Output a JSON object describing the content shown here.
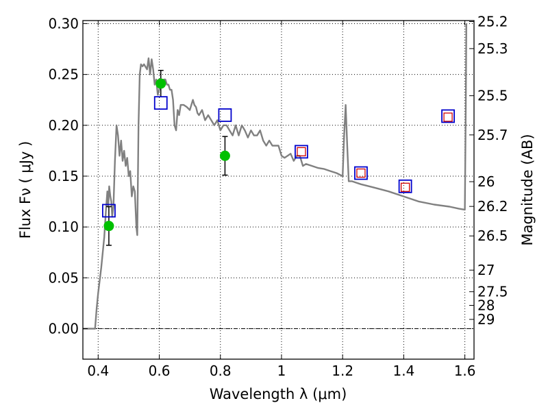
{
  "chart_data": {
    "type": "scatter",
    "xlabel": "Wavelength  λ (μm)",
    "ylabel": "Flux  Fν  ( μJy )",
    "y2label": "Magnitude (AB)",
    "xlim": [
      0.35,
      1.63
    ],
    "ylim": [
      -0.03,
      0.303
    ],
    "grid": true,
    "x_ticks": [
      {
        "value": 0.4,
        "label": "0.4"
      },
      {
        "value": 0.6,
        "label": "0.6"
      },
      {
        "value": 0.8,
        "label": "0.8"
      },
      {
        "value": 1.0,
        "label": "1"
      },
      {
        "value": 1.2,
        "label": "1.2"
      },
      {
        "value": 1.4,
        "label": "1.4"
      },
      {
        "value": 1.6,
        "label": "1.6"
      }
    ],
    "y_ticks": [
      {
        "value": 0.0,
        "label": "0.00"
      },
      {
        "value": 0.05,
        "label": "0.05"
      },
      {
        "value": 0.1,
        "label": "0.10"
      },
      {
        "value": 0.15,
        "label": "0.15"
      },
      {
        "value": 0.2,
        "label": "0.20"
      },
      {
        "value": 0.25,
        "label": "0.25"
      },
      {
        "value": 0.3,
        "label": "0.30"
      }
    ],
    "mag_ticks": [
      {
        "value": 25.2,
        "label": "25.2"
      },
      {
        "value": 25.3,
        "label": "25.3"
      },
      {
        "value": 25.5,
        "label": "25.5"
      },
      {
        "value": 25.7,
        "label": "25.7"
      },
      {
        "value": 26.0,
        "label": "26"
      },
      {
        "value": 26.2,
        "label": "26.2"
      },
      {
        "value": 26.5,
        "label": "26.5"
      },
      {
        "value": 27.0,
        "label": "27"
      },
      {
        "value": 27.5,
        "label": "27.5"
      },
      {
        "value": 28.0,
        "label": "28"
      },
      {
        "value": 29.0,
        "label": "29"
      }
    ],
    "series": [
      {
        "kind": "line",
        "color": "#808080",
        "x": [
          0.35,
          0.39,
          0.395,
          0.4,
          0.41,
          0.42,
          0.425,
          0.43,
          0.433,
          0.436,
          0.44,
          0.443,
          0.446,
          0.45,
          0.455,
          0.46,
          0.465,
          0.47,
          0.475,
          0.48,
          0.485,
          0.49,
          0.495,
          0.5,
          0.505,
          0.51,
          0.515,
          0.52,
          0.525,
          0.528,
          0.532,
          0.536,
          0.54,
          0.545,
          0.55,
          0.56,
          0.565,
          0.57,
          0.575,
          0.58,
          0.585,
          0.59,
          0.595,
          0.6,
          0.605,
          0.61,
          0.615,
          0.62,
          0.625,
          0.63,
          0.635,
          0.64,
          0.645,
          0.65,
          0.655,
          0.66,
          0.665,
          0.67,
          0.68,
          0.69,
          0.7,
          0.71,
          0.715,
          0.72,
          0.725,
          0.73,
          0.74,
          0.75,
          0.76,
          0.77,
          0.78,
          0.79,
          0.8,
          0.81,
          0.82,
          0.83,
          0.84,
          0.85,
          0.86,
          0.87,
          0.88,
          0.89,
          0.9,
          0.91,
          0.92,
          0.93,
          0.94,
          0.95,
          0.96,
          0.97,
          0.98,
          0.99,
          1.0,
          1.01,
          1.02,
          1.03,
          1.04,
          1.05,
          1.06,
          1.07,
          1.08,
          1.1,
          1.12,
          1.14,
          1.16,
          1.18,
          1.2,
          1.205,
          1.21,
          1.215,
          1.22,
          1.23,
          1.26,
          1.3,
          1.35,
          1.4,
          1.45,
          1.5,
          1.55,
          1.58,
          1.6,
          1.603,
          1.605
        ],
        "y": [
          0.0,
          0.0,
          0.02,
          0.035,
          0.06,
          0.09,
          0.115,
          0.135,
          0.12,
          0.14,
          0.13,
          0.125,
          0.11,
          0.12,
          0.165,
          0.2,
          0.19,
          0.17,
          0.185,
          0.165,
          0.175,
          0.16,
          0.168,
          0.15,
          0.155,
          0.13,
          0.14,
          0.135,
          0.1,
          0.092,
          0.2,
          0.25,
          0.26,
          0.258,
          0.26,
          0.255,
          0.266,
          0.25,
          0.265,
          0.255,
          0.24,
          0.245,
          0.23,
          0.235,
          0.245,
          0.24,
          0.245,
          0.245,
          0.24,
          0.24,
          0.235,
          0.235,
          0.225,
          0.2,
          0.195,
          0.215,
          0.21,
          0.22,
          0.22,
          0.218,
          0.215,
          0.225,
          0.22,
          0.218,
          0.212,
          0.21,
          0.215,
          0.205,
          0.21,
          0.205,
          0.2,
          0.205,
          0.195,
          0.2,
          0.2,
          0.195,
          0.19,
          0.2,
          0.19,
          0.2,
          0.195,
          0.188,
          0.195,
          0.19,
          0.19,
          0.195,
          0.185,
          0.18,
          0.185,
          0.18,
          0.18,
          0.18,
          0.17,
          0.168,
          0.17,
          0.172,
          0.165,
          0.17,
          0.17,
          0.16,
          0.162,
          0.16,
          0.158,
          0.157,
          0.155,
          0.153,
          0.15,
          0.19,
          0.22,
          0.18,
          0.145,
          0.145,
          0.142,
          0.139,
          0.135,
          0.13,
          0.125,
          0.122,
          0.12,
          0.118,
          0.117,
          0.22,
          0.3
        ]
      },
      {
        "kind": "errorbar",
        "marker": "circle",
        "color": "#00c000",
        "x": [
          0.435,
          0.605,
          0.815
        ],
        "y": [
          0.101,
          0.241,
          0.17
        ],
        "yerr": [
          0.019,
          0.013,
          0.019
        ]
      },
      {
        "kind": "scatter",
        "marker": "square-open",
        "color": "#0000cc",
        "x": [
          0.435,
          0.605,
          0.815,
          1.065,
          1.26,
          1.405,
          1.545
        ],
        "y": [
          0.116,
          0.222,
          0.21,
          0.174,
          0.153,
          0.14,
          0.209
        ]
      },
      {
        "kind": "scatter",
        "marker": "square-open-small",
        "color": "#d00000",
        "x": [
          1.065,
          1.26,
          1.405,
          1.545
        ],
        "y": [
          0.174,
          0.153,
          0.139,
          0.208
        ]
      }
    ]
  }
}
